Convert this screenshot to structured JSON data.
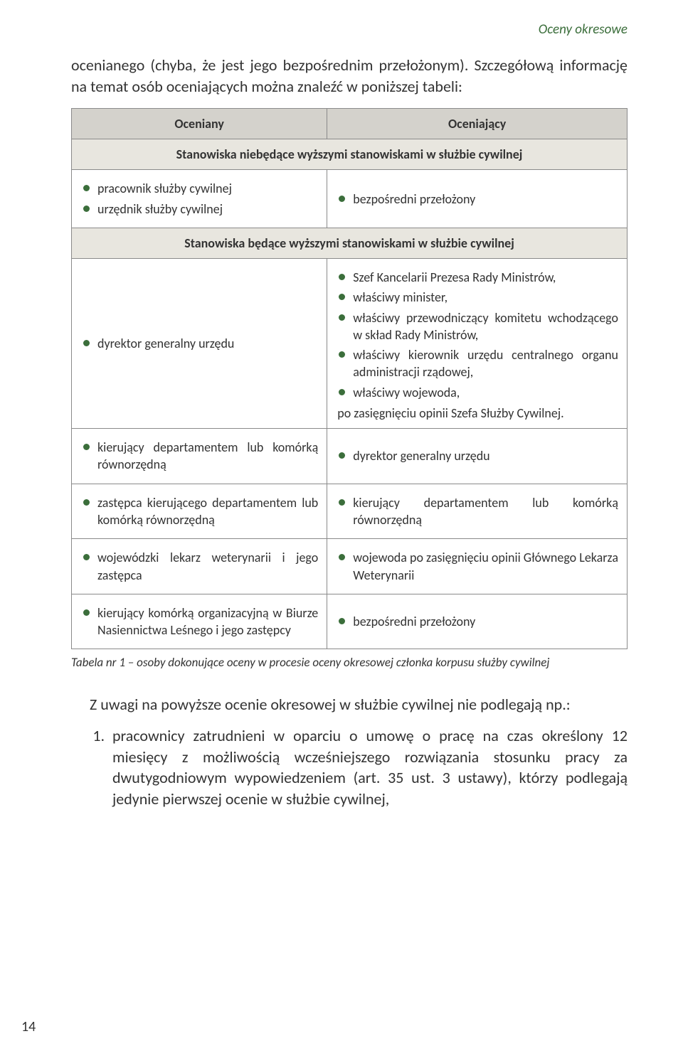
{
  "running_head": "Oceny okresowe",
  "intro_p1": "ocenianego (chyba, że jest jego bezpośrednim przełożonym). Szczegółową informację na temat osób oceniających można znaleźć w poniższej tabeli:",
  "table": {
    "header_left": "Oceniany",
    "header_right": "Oceniający",
    "section1": "Stanowiska niebędące wyższymi stanowiskami w służbie cywilnej",
    "row1_left_items": [
      "pracownik służby cywilnej",
      "urzędnik służby cywilnej"
    ],
    "row1_right_items": [
      "bezpośredni przełożony"
    ],
    "section2": "Stanowiska będące wyższymi stanowiskami w służbie cywilnej",
    "row2_left_items": [
      "dyrektor generalny urzędu"
    ],
    "row2_right_items": [
      "Szef Kancelarii Prezesa Rady Ministrów,",
      "właściwy minister,",
      "właściwy przewodniczący komitetu wchodzącego w skład Rady Ministrów,",
      "właściwy kierownik urzędu centralnego organu administracji rządowej,",
      "właściwy wojewoda,"
    ],
    "row2_right_after": "po zasięgnięciu opinii Szefa Służby Cywilnej.",
    "row3_left_items": [
      "kierujący departamentem lub komórką równorzędną"
    ],
    "row3_right_items": [
      "dyrektor generalny urzędu"
    ],
    "row4_left_items": [
      "zastępca kierującego departamentem lub komórką równorzędną"
    ],
    "row4_right_w1": "kierujący",
    "row4_right_w2": "departamentem",
    "row4_right_w3": "lub",
    "row4_right_w4": "komórką",
    "row4_right_line2": "równorzędną",
    "row5_left_items": [
      "wojewódzki lekarz weterynarii i jego zastępca"
    ],
    "row5_right_items": [
      "wojewoda po zasięgnięciu opinii Głównego Lekarza Weterynarii"
    ],
    "row6_left_items": [
      "kierujący komórką organizacyjną w Biurze Nasiennictwa Leśnego i jego zastępcy"
    ],
    "row6_right_items": [
      "bezpośredni przełożony"
    ]
  },
  "caption": "Tabela nr 1 – osoby dokonujące oceny w procesie oceny okresowej członka korpusu służby cywilnej",
  "closing_intro": "Z uwagi na powyższe ocenie okresowej w służbie cywilnej nie podlegają np.:",
  "closing_item1": "pracownicy zatrudnieni w oparciu o umowę o pracę na czas określony 12 miesięcy z możliwością wcześniejszego rozwiązania stosunku pracy za dwutygodniowym wypowiedzeniem (art. 35 ust. 3 ustawy), którzy podlegają jedynie pierwszej ocenie w służbie cywilnej,",
  "page_number": "14"
}
